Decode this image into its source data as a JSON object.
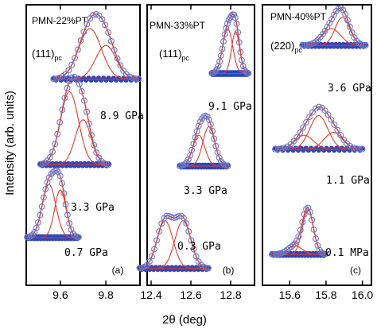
{
  "figure": {
    "ylabel": "Intensity (arb. units)",
    "xlabel": "2θ (deg)"
  },
  "chart_data": [
    {
      "type": "scatter",
      "panel_label": "(a)",
      "title": "PMN-22%PT",
      "reflection": "(111)",
      "reflection_sub": "pc",
      "xlim": [
        9.45,
        9.95
      ],
      "xticks": [
        9.6,
        9.8
      ],
      "xticklabels": [
        "9.6",
        "9.8"
      ],
      "series": [
        {
          "pressure": "8.9 GPa",
          "baseline": 0.735,
          "peaks": [
            {
              "center": 9.73,
              "width": 0.05,
              "height": 0.18
            },
            {
              "center": 9.8,
              "width": 0.045,
              "height": 0.12
            }
          ]
        },
        {
          "pressure": "3.3 GPa",
          "baseline": 0.43,
          "peaks": [
            {
              "center": 9.64,
              "width": 0.04,
              "height": 0.26
            },
            {
              "center": 9.7,
              "width": 0.035,
              "height": 0.16
            }
          ]
        },
        {
          "pressure": "0.7 GPa",
          "baseline": 0.17,
          "peaks": [
            {
              "center": 9.55,
              "width": 0.03,
              "height": 0.19
            },
            {
              "center": 9.6,
              "width": 0.025,
              "height": 0.17
            }
          ]
        }
      ]
    },
    {
      "type": "scatter",
      "panel_label": "(b)",
      "title": "PMN-33%PT",
      "reflection": "(111)",
      "reflection_sub": "pc",
      "xlim": [
        12.38,
        12.92
      ],
      "xticks": [
        12.4,
        12.6,
        12.8
      ],
      "xticklabels": [
        "12.4",
        "12.6",
        "12.8"
      ],
      "series": [
        {
          "pressure": "9.1 GPa",
          "baseline": 0.755,
          "peaks": [
            {
              "center": 12.785,
              "width": 0.025,
              "height": 0.16
            },
            {
              "center": 12.825,
              "width": 0.02,
              "height": 0.15
            }
          ]
        },
        {
          "pressure": "3.3 GPa",
          "baseline": 0.425,
          "peaks": [
            {
              "center": 12.64,
              "width": 0.03,
              "height": 0.11
            },
            {
              "center": 12.69,
              "width": 0.03,
              "height": 0.14
            }
          ]
        },
        {
          "pressure": "0.3 GPa",
          "baseline": 0.06,
          "peaks": [
            {
              "center": 12.47,
              "width": 0.04,
              "height": 0.17
            },
            {
              "center": 12.56,
              "width": 0.04,
              "height": 0.17
            }
          ]
        }
      ]
    },
    {
      "type": "scatter",
      "panel_label": "(c)",
      "title": "PMN-40%PT",
      "reflection": "(220)",
      "reflection_sub": "pc",
      "xlim": [
        15.45,
        16.05
      ],
      "xticks": [
        15.6,
        15.8,
        16.0
      ],
      "xticklabels": [
        "15.6",
        "15.8",
        "16.0"
      ],
      "series": [
        {
          "pressure": "3.6 GPa",
          "baseline": 0.855,
          "peaks": [
            {
              "center": 15.83,
              "width": 0.05,
              "height": 0.06
            },
            {
              "center": 15.89,
              "width": 0.04,
              "height": 0.1
            }
          ]
        },
        {
          "pressure": "1.1 GPa",
          "baseline": 0.485,
          "peaks": [
            {
              "center": 15.68,
              "width": 0.05,
              "height": 0.05
            },
            {
              "center": 15.76,
              "width": 0.05,
              "height": 0.12
            },
            {
              "center": 15.84,
              "width": 0.05,
              "height": 0.06
            }
          ]
        },
        {
          "pressure": "0.1 MPa",
          "baseline": 0.11,
          "peaks": [
            {
              "center": 15.63,
              "width": 0.04,
              "height": 0.03
            },
            {
              "center": 15.7,
              "width": 0.03,
              "height": 0.16
            }
          ]
        }
      ]
    }
  ],
  "colors": {
    "fit_line": "#e23b2e",
    "data_marker": "#6a78c8",
    "baseline_marker": "#2f47b8"
  }
}
